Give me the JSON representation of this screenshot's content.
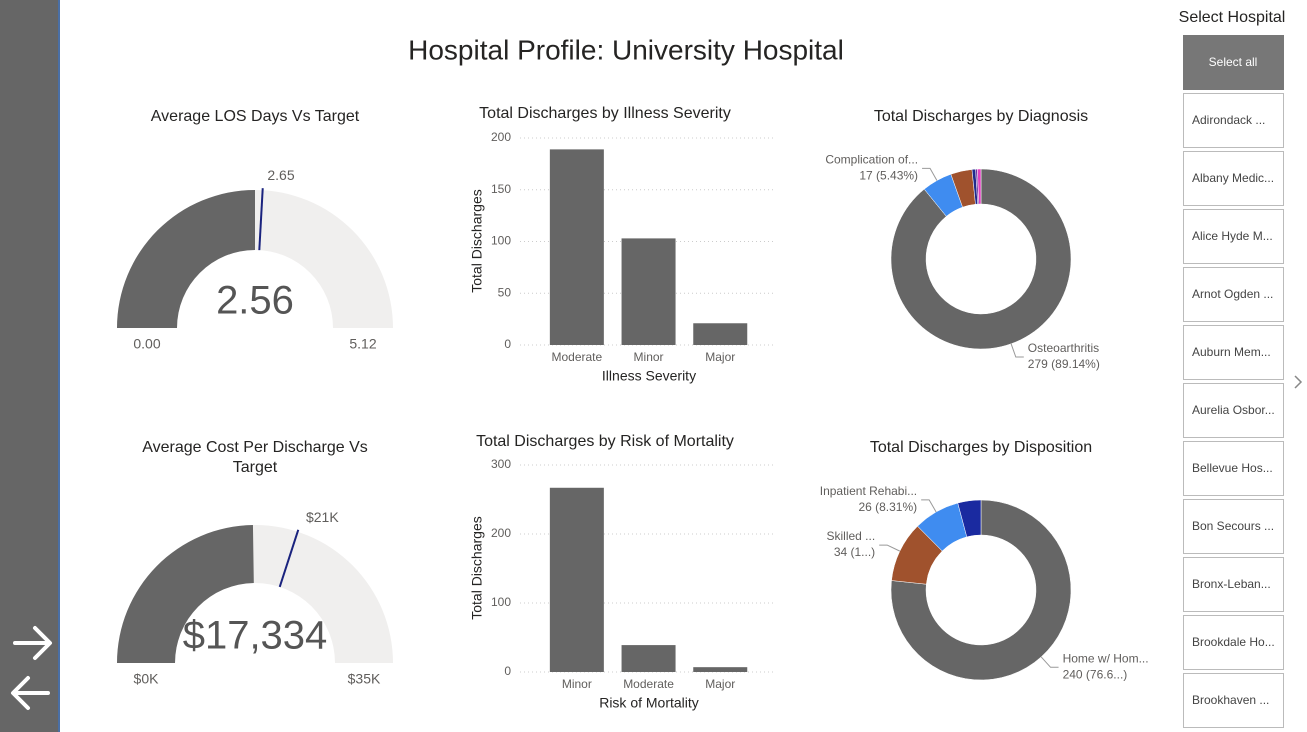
{
  "header": {
    "title": "Hospital Profile: University Hospital"
  },
  "slicer": {
    "title": "Select Hospital",
    "items": [
      "Select all",
      "Adirondack ...",
      "Albany Medic...",
      "Alice Hyde M...",
      "Arnot Ogden ...",
      "Auburn Mem...",
      "Aurelia Osbor...",
      "Bellevue Hos...",
      "Bon Secours ...",
      "Bronx-Leban...",
      "Brookdale Ho...",
      "Brookhaven ..."
    ]
  },
  "chart_data": [
    {
      "type": "gauge",
      "title": "Average LOS Days Vs Target",
      "value": 2.56,
      "target": 2.65,
      "min": 0,
      "min_label": "0.00",
      "max": 5.12,
      "color": "#666666",
      "track_color": "#f0efee",
      "target_color": "#1a237e"
    },
    {
      "type": "bar",
      "title": "Total Discharges by Illness Severity",
      "x_label": "Illness Severity",
      "y_label": "Total Discharges",
      "categories": [
        "Moderate",
        "Minor",
        "Major"
      ],
      "values": [
        189,
        103,
        21
      ],
      "color": "#666666",
      "ylim": [
        0,
        200
      ],
      "yticks": [
        0,
        50,
        100,
        150,
        200
      ],
      "grid": true
    },
    {
      "type": "donut",
      "title": "Total Discharges by Diagnosis",
      "categories": [
        "Osteoarthritis",
        "Complication of...",
        null,
        null,
        null,
        null
      ],
      "values": [
        279,
        17,
        12,
        2,
        1,
        2
      ],
      "value_labels": [
        "279 (89.14%)",
        "17 (5.43%)",
        null,
        null,
        null,
        null
      ],
      "colors": [
        "#666666",
        "#3f8cf0",
        "#a0522d",
        "#1f2a8c",
        "#6b2fa0",
        "#e040c0"
      ]
    },
    {
      "type": "gauge",
      "title": "Average Cost Per Discharge Vs Target",
      "value": 17334,
      "value_label": "$17,334",
      "target": 21000,
      "target_label": "$21K",
      "min": 0,
      "min_label": "$0K",
      "max": 35000,
      "max_label": "$35K",
      "color": "#666666",
      "track_color": "#f0efee",
      "target_color": "#1a237e"
    },
    {
      "type": "bar",
      "title": "Total Discharges by Risk of Mortality",
      "x_label": "Risk of Mortality",
      "y_label": "Total Discharges",
      "categories": [
        "Minor",
        "Moderate",
        "Major"
      ],
      "values": [
        267,
        39,
        7
      ],
      "color": "#666666",
      "ylim": [
        0,
        300
      ],
      "yticks": [
        0,
        100,
        200,
        300
      ],
      "grid": true
    },
    {
      "type": "donut",
      "title": "Total Discharges by Disposition",
      "categories": [
        "Home w/ Hom...",
        "Skilled ...",
        "Inpatient Rehabi...",
        null
      ],
      "values": [
        240,
        34,
        26,
        13
      ],
      "value_labels": [
        "240 (76.6...)",
        "34 (1...)",
        "26 (8.31%)",
        null
      ],
      "colors": [
        "#666666",
        "#a0522d",
        "#3f8cf0",
        "#1a2aa0"
      ]
    }
  ]
}
